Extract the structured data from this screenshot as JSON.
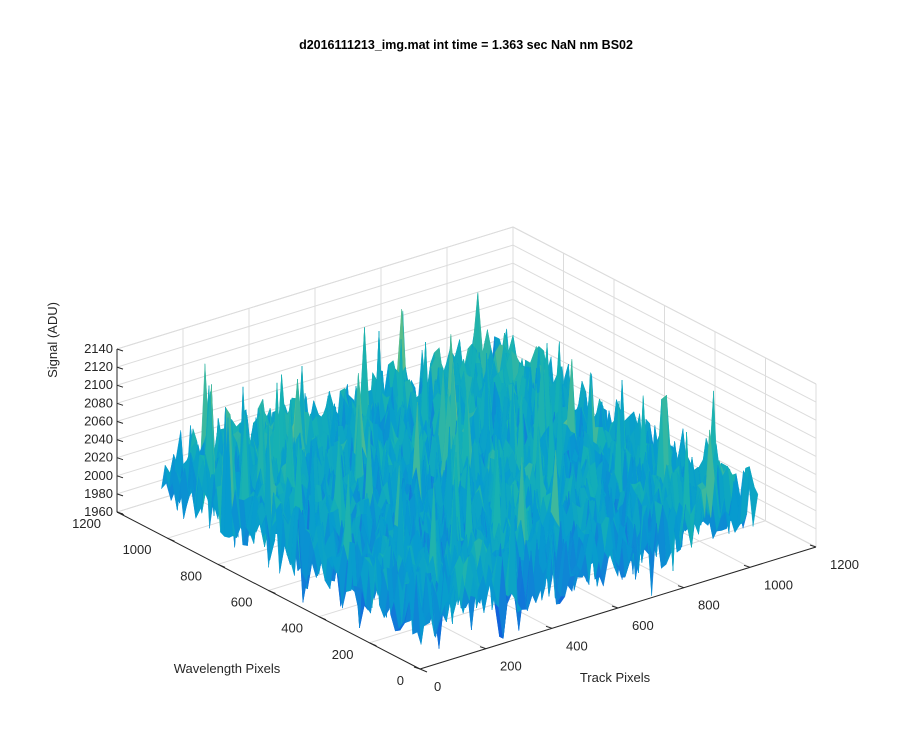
{
  "chart_data": {
    "type": "surface",
    "title": "d2016111213_img.mat int time = 1.363 sec  NaN nm BS02",
    "xlabel": "Track Pixels",
    "ylabel": "Wavelength Pixels",
    "zlabel": "Signal (ADU)",
    "xlim": [
      0,
      1200
    ],
    "ylim": [
      0,
      1200
    ],
    "zlim": [
      1960,
      2140
    ],
    "x_ticks": [
      "0",
      "200",
      "400",
      "600",
      "800",
      "1000",
      "1200"
    ],
    "y_ticks": [
      "0",
      "200",
      "400",
      "600",
      "800",
      "1000",
      "1200"
    ],
    "z_ticks": [
      "1960",
      "1980",
      "2000",
      "2020",
      "2040",
      "2060",
      "2080",
      "2100",
      "2120",
      "2140"
    ],
    "data_range": {
      "x": [
        0,
        1024
      ],
      "y": [
        0,
        1024
      ]
    },
    "signal_summary": {
      "typical_min": 1965,
      "typical_max": 2075,
      "peak": 2135,
      "mean": 2030
    },
    "grid": true,
    "colormap": "parula"
  }
}
